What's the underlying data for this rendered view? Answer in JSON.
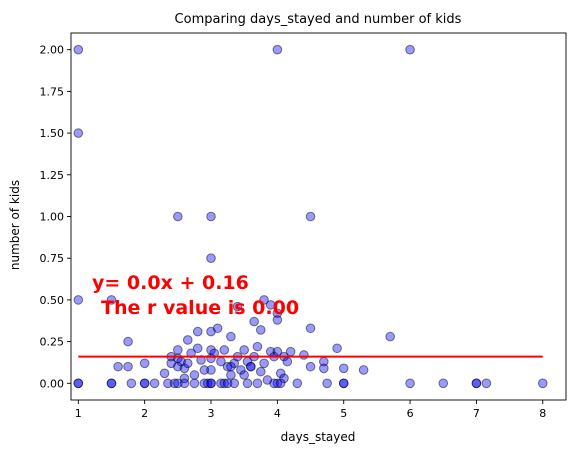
{
  "chart_data": {
    "type": "scatter",
    "title": "Comparing days_stayed and  number of kids",
    "xlabel": "days_stayed",
    "ylabel": "number of kids",
    "xlim": [
      0.89,
      8.35
    ],
    "ylim": [
      -0.1,
      2.1
    ],
    "xticks": [
      "1",
      "2",
      "3",
      "4",
      "5",
      "6",
      "7",
      "8"
    ],
    "yticks": [
      "0.00",
      "0.25",
      "0.50",
      "0.75",
      "1.00",
      "1.25",
      "1.50",
      "1.75",
      "2.00"
    ],
    "grid": false,
    "marker_color": "#0000ff",
    "marker_alpha": 0.4,
    "line_color": "#ff0000",
    "regression": {
      "slope": 0.0,
      "intercept": 0.16,
      "x_range": [
        1,
        8
      ]
    },
    "annotation": {
      "equation": "y= 0.0x + 0.16",
      "r_value": "The r value is 0.00",
      "color": "#ff0000"
    },
    "points": [
      [
        1,
        2.0
      ],
      [
        1,
        1.5
      ],
      [
        1,
        0.5
      ],
      [
        1,
        0
      ],
      [
        1,
        0
      ],
      [
        1.5,
        0.5
      ],
      [
        1.5,
        0
      ],
      [
        1.6,
        0.1
      ],
      [
        1.75,
        0.25
      ],
      [
        1.75,
        0.1
      ],
      [
        1.8,
        0
      ],
      [
        2,
        0.12
      ],
      [
        2,
        0
      ],
      [
        2,
        0
      ],
      [
        2.15,
        0
      ],
      [
        2.3,
        0.06
      ],
      [
        2.35,
        0
      ],
      [
        2.4,
        0.16
      ],
      [
        2.4,
        0.12
      ],
      [
        2.45,
        0
      ],
      [
        2.5,
        1.0
      ],
      [
        2.5,
        0.1
      ],
      [
        2.5,
        0.15
      ],
      [
        2.5,
        0.2
      ],
      [
        2.55,
        0.13
      ],
      [
        2.6,
        0.09
      ],
      [
        2.6,
        0.03
      ],
      [
        2.65,
        0.26
      ],
      [
        2.65,
        0.12
      ],
      [
        2.7,
        0.18
      ],
      [
        2.75,
        0.05
      ],
      [
        2.75,
        0
      ],
      [
        2.8,
        0.31
      ],
      [
        2.8,
        0.21
      ],
      [
        2.85,
        0.14
      ],
      [
        2.9,
        0.08
      ],
      [
        2.95,
        0
      ],
      [
        3,
        1.0
      ],
      [
        3,
        0.75
      ],
      [
        3,
        0.31
      ],
      [
        3,
        0.2
      ],
      [
        3,
        0.15
      ],
      [
        3,
        0.08
      ],
      [
        3,
        0
      ],
      [
        3.05,
        0.18
      ],
      [
        3.1,
        0.33
      ],
      [
        3.15,
        0
      ],
      [
        3.15,
        0.13
      ],
      [
        3.2,
        0.2
      ],
      [
        3.25,
        0.1
      ],
      [
        3.3,
        0.28
      ],
      [
        3.3,
        0.05
      ],
      [
        3.35,
        0.12
      ],
      [
        3.35,
        0
      ],
      [
        3.4,
        0.16
      ],
      [
        3.4,
        0.46
      ],
      [
        3.45,
        0.08
      ],
      [
        3.5,
        0.05
      ],
      [
        3.5,
        0.2
      ],
      [
        3.55,
        0.13
      ],
      [
        3.55,
        0
      ],
      [
        3.6,
        0.1
      ],
      [
        3.65,
        0.37
      ],
      [
        3.65,
        0.16
      ],
      [
        3.7,
        0.22
      ],
      [
        3.7,
        0
      ],
      [
        3.75,
        0.07
      ],
      [
        3.75,
        0.32
      ],
      [
        3.8,
        0.5
      ],
      [
        3.8,
        0.12
      ],
      [
        3.85,
        0.02
      ],
      [
        3.9,
        0.19
      ],
      [
        3.9,
        0.47
      ],
      [
        3.95,
        0.16
      ],
      [
        4,
        2.0
      ],
      [
        4,
        0.42
      ],
      [
        4,
        0.38
      ],
      [
        4,
        0.19
      ],
      [
        4,
        0
      ],
      [
        4.05,
        0.06
      ],
      [
        4.1,
        0.16
      ],
      [
        4.1,
        0.03
      ],
      [
        4.15,
        0.13
      ],
      [
        4.2,
        0.19
      ],
      [
        4.3,
        0
      ],
      [
        4.4,
        0.17
      ],
      [
        4.5,
        1.0
      ],
      [
        4.5,
        0.33
      ],
      [
        4.5,
        0.1
      ],
      [
        4.7,
        0.13
      ],
      [
        4.7,
        0.09
      ],
      [
        4.75,
        0
      ],
      [
        4.9,
        0.21
      ],
      [
        5,
        0.09
      ],
      [
        5,
        0
      ],
      [
        5.3,
        0.08
      ],
      [
        5.7,
        0.28
      ],
      [
        6,
        2.0
      ],
      [
        6,
        0
      ],
      [
        6.5,
        0
      ],
      [
        7,
        0
      ],
      [
        7.15,
        0
      ],
      [
        8,
        0
      ],
      [
        2.6,
        0
      ],
      [
        2.9,
        0
      ],
      [
        3.2,
        0
      ],
      [
        3.3,
        0.1
      ],
      [
        3.6,
        0.1
      ],
      [
        3.95,
        0
      ],
      [
        4.05,
        0
      ],
      [
        5,
        0
      ],
      [
        7,
        0
      ],
      [
        3,
        0
      ],
      [
        3.25,
        0
      ],
      [
        1.5,
        0
      ],
      [
        2.5,
        0
      ]
    ]
  }
}
